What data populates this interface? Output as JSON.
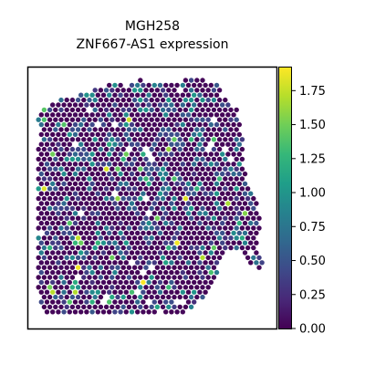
{
  "chart_data": {
    "type": "scatter",
    "subtype": "spatial spot map (hexagonal spots)",
    "title_line1": "MGH258",
    "title_line2": "ZNF667-AS1 expression",
    "xlabel": "",
    "ylabel": "",
    "axes_ticks_visible": false,
    "grid": false,
    "legend": "colorbar-right",
    "colorscale": "viridis",
    "color_range": [
      0,
      1.92
    ],
    "colorbar_ticks": [
      "0.00",
      "0.25",
      "0.50",
      "0.75",
      "1.00",
      "1.25",
      "1.50",
      "1.75"
    ],
    "colorbar_tick_values": [
      0,
      0.25,
      0.5,
      0.75,
      1.0,
      1.25,
      1.5,
      1.75
    ],
    "value_distribution_note": "most spots near 0.0; scattered spots 0.25–1.0; a few high spots up to ~1.9"
  },
  "colors": {
    "viridis": [
      "#440154",
      "#482878",
      "#3e4989",
      "#31688e",
      "#26828e",
      "#1f9e89",
      "#35b779",
      "#6ece58",
      "#b5de2b",
      "#fde725"
    ]
  }
}
